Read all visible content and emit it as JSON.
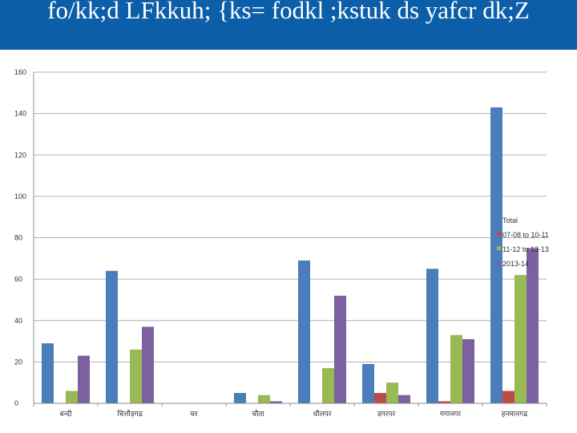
{
  "header": {
    "title": "fo/kk;d LFkkuh; {ks= fodkl ;kstuk ds yafcr dk;Z"
  },
  "colors": {
    "header_bg": "#0d5ea9",
    "grid": "#b0b0b0",
    "axis": "#8c8c8c"
  },
  "chart_data": {
    "type": "bar",
    "title": "",
    "xlabel": "",
    "ylabel": "",
    "ylim": [
      0,
      160
    ],
    "yticks": [
      0,
      20,
      40,
      60,
      80,
      100,
      120,
      140,
      160
    ],
    "grid": true,
    "legend_position": "right",
    "categories": [
      "बन्दी",
      "चित्तौड़गढ",
      "चर",
      "चौता",
      "धौलपर",
      "डगरपर",
      "गगानगर",
      "हनमानगढ"
    ],
    "series": [
      {
        "name": "Total",
        "color": "#4a7ebb",
        "values": [
          29,
          64,
          0,
          5,
          69,
          19,
          65,
          143
        ]
      },
      {
        "name": "07-08 to 10-11",
        "color": "#be4b48",
        "values": [
          0,
          0,
          0,
          0,
          0,
          5,
          1,
          6
        ]
      },
      {
        "name": "11-12 to 12-13",
        "color": "#98b954",
        "values": [
          6,
          26,
          0,
          4,
          17,
          10,
          33,
          62
        ]
      },
      {
        "name": "2013-14",
        "color": "#7d60a0",
        "values": [
          23,
          37,
          0,
          1,
          52,
          4,
          31,
          75
        ]
      }
    ]
  }
}
